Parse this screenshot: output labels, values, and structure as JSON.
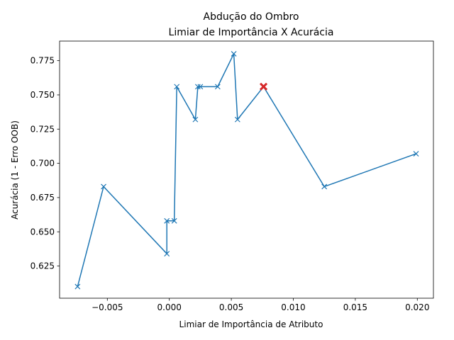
{
  "chart_data": {
    "type": "line",
    "title": "Abdução do Ombro",
    "subtitle": "Limiar de Importância X Acurácia",
    "xlabel": "Limiar de Importância de Atributo",
    "ylabel": "Acurácia (1 - Erro OOB)",
    "xlim": [
      -0.00885,
      0.0213
    ],
    "ylim": [
      0.6015,
      0.7893
    ],
    "xticks": [
      -0.005,
      0.0,
      0.005,
      0.01,
      0.015,
      0.02
    ],
    "xtick_labels": [
      "−0.005",
      "0.000",
      "0.005",
      "0.010",
      "0.015",
      "0.020"
    ],
    "yticks": [
      0.625,
      0.65,
      0.675,
      0.7,
      0.725,
      0.75,
      0.775
    ],
    "ytick_labels": [
      "0.625",
      "0.650",
      "0.675",
      "0.700",
      "0.725",
      "0.750",
      "0.775"
    ],
    "grid": false,
    "series": [
      {
        "color": "#1f77b4",
        "marker": "x",
        "x": [
          -0.0074,
          -0.0053,
          -0.0002,
          -0.0002,
          0.0004,
          0.0006,
          0.0021,
          0.0023,
          0.0025,
          0.0039,
          0.0052,
          0.0055,
          0.0076,
          0.0125,
          0.0199
        ],
        "y": [
          0.61,
          0.683,
          0.634,
          0.658,
          0.658,
          0.756,
          0.732,
          0.756,
          0.756,
          0.756,
          0.78,
          0.732,
          0.756,
          0.683,
          0.707
        ]
      }
    ],
    "highlight": {
      "x": 0.0076,
      "y": 0.756,
      "color": "#d62728",
      "marker": "x"
    }
  }
}
